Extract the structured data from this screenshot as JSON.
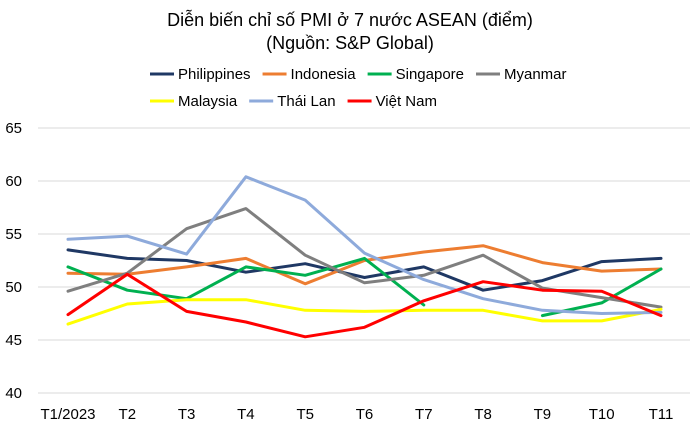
{
  "chart_data": {
    "type": "line",
    "title": "Diễn biến chỉ số PMI ở 7 nước ASEAN (điểm)",
    "subtitle": "(Nguồn: S&P Global)",
    "xlabel": "",
    "ylabel": "",
    "categories": [
      "T1/2023",
      "T2",
      "T3",
      "T4",
      "T5",
      "T6",
      "T7",
      "T8",
      "T9",
      "T10",
      "T11"
    ],
    "ylim": [
      40,
      65
    ],
    "yticks": [
      40,
      45,
      50,
      55,
      60,
      65
    ],
    "grid": true,
    "legend_position": "top",
    "series": [
      {
        "name": "Philippines",
        "color": "#1f3864",
        "values": [
          53.5,
          52.7,
          52.5,
          51.4,
          52.2,
          50.9,
          51.9,
          49.7,
          50.6,
          52.4,
          52.7
        ]
      },
      {
        "name": "Indonesia",
        "color": "#ed7d31",
        "values": [
          51.3,
          51.2,
          51.9,
          52.7,
          50.3,
          52.5,
          53.3,
          53.9,
          52.3,
          51.5,
          51.7
        ]
      },
      {
        "name": "Singapore",
        "color": "#00b050",
        "values": [
          51.9,
          49.7,
          48.9,
          51.9,
          51.1,
          52.7,
          48.3,
          null,
          47.3,
          48.5,
          51.7
        ]
      },
      {
        "name": "Myanmar",
        "color": "#7f7f7f",
        "values": [
          49.6,
          51.3,
          55.5,
          57.4,
          53.0,
          50.4,
          51.1,
          53.0,
          49.9,
          49.0,
          48.1
        ]
      },
      {
        "name": "Malaysia",
        "color": "#ffff00",
        "values": [
          46.5,
          48.4,
          48.8,
          48.8,
          47.8,
          47.7,
          47.8,
          47.8,
          46.8,
          46.8,
          47.9
        ]
      },
      {
        "name": "Thái Lan",
        "color": "#8eaadb",
        "values": [
          54.5,
          54.8,
          53.1,
          60.4,
          58.2,
          53.2,
          50.7,
          48.9,
          47.8,
          47.5,
          47.6
        ]
      },
      {
        "name": "Việt Nam",
        "color": "#ff0000",
        "values": [
          47.4,
          51.2,
          47.7,
          46.7,
          45.3,
          46.2,
          48.7,
          50.5,
          49.7,
          49.6,
          47.3
        ]
      }
    ]
  }
}
